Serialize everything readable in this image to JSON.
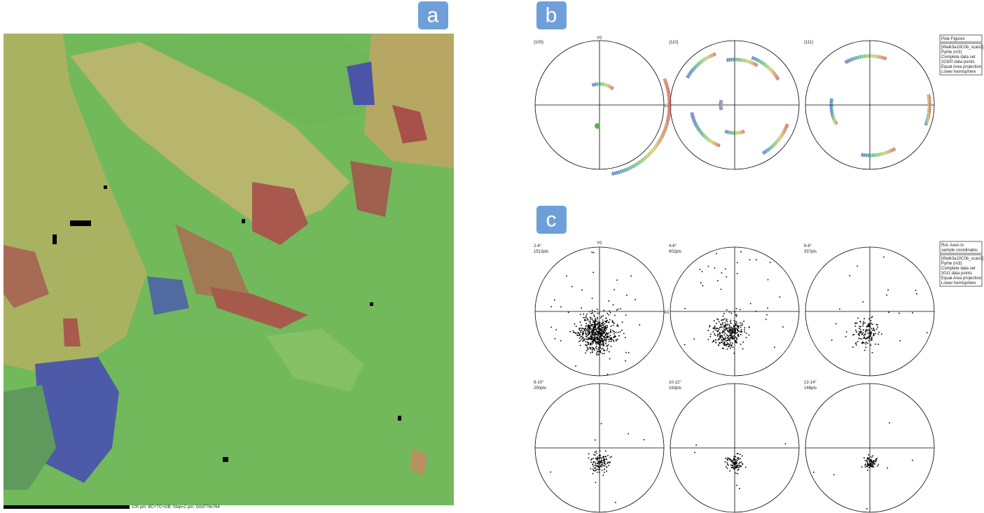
{
  "panel_a": {
    "label": "a",
    "scale_bar_text": "100 µm; BC+TC+GB; Step=2 µm; Grid776x764"
  },
  "panel_b": {
    "label": "b",
    "y_axis": "Y0",
    "x_axis": "X0",
    "figures": [
      "{100}",
      "{110}",
      "{111}"
    ],
    "legend_title": "Pole Figures",
    "legend_lines": [
      "[Walk3a10C0b_scan2]",
      "Pyrite (m3)",
      "Complete data set",
      "32300 data points",
      "Equal Area projection",
      "Lower hemisphere"
    ]
  },
  "panel_c": {
    "label": "c",
    "y_axis": "Y0",
    "x_axis": "X0",
    "figures": [
      {
        "range": "2-4°",
        "points": "1513pts"
      },
      {
        "range": "4-6°",
        "points": "602pts"
      },
      {
        "range": "6-8°",
        "points": "337pts"
      },
      {
        "range": "8-10°",
        "points": "250pts"
      },
      {
        "range": "10-12°",
        "points": "163pts"
      },
      {
        "range": "12-14°",
        "points": "146pts"
      }
    ],
    "legend_title": [
      "Rot. Axes in",
      "sample coordinates"
    ],
    "legend_lines": [
      "[Walk3a10C0b_scan2]",
      "Pyrite (m3)",
      "Complete data set",
      "3011 data points",
      "Equal Area projection",
      "Lower hemisphere"
    ]
  }
}
